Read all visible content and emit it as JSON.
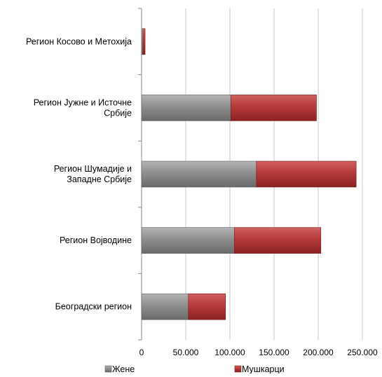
{
  "chart_data": {
    "type": "bar",
    "orientation": "horizontal",
    "stacked": true,
    "categories": [
      [
        "Регион Косово и Метохија"
      ],
      [
        "Регион Јужне и Источне",
        "Србије"
      ],
      [
        "Регион Шумадије и",
        "Западне Србије"
      ],
      [
        "Регион Војводине"
      ],
      [
        "Београдски регион"
      ]
    ],
    "series": [
      {
        "name": "Жене",
        "color": "#8c8c8c",
        "values": [
          1500,
          101000,
          130000,
          105000,
          53000
        ]
      },
      {
        "name": "Мушкарци",
        "color": "#b53a3a",
        "values": [
          2500,
          97000,
          113000,
          98000,
          42000
        ]
      }
    ],
    "xlim": [
      0,
      250000
    ],
    "x_ticks": [
      0,
      50000,
      100000,
      150000,
      200000,
      250000
    ],
    "x_tick_labels": [
      "0",
      "50.000",
      "100.000",
      "150.000",
      "200.000",
      "250.000"
    ],
    "grid": "vertical",
    "legend_position": "bottom"
  }
}
